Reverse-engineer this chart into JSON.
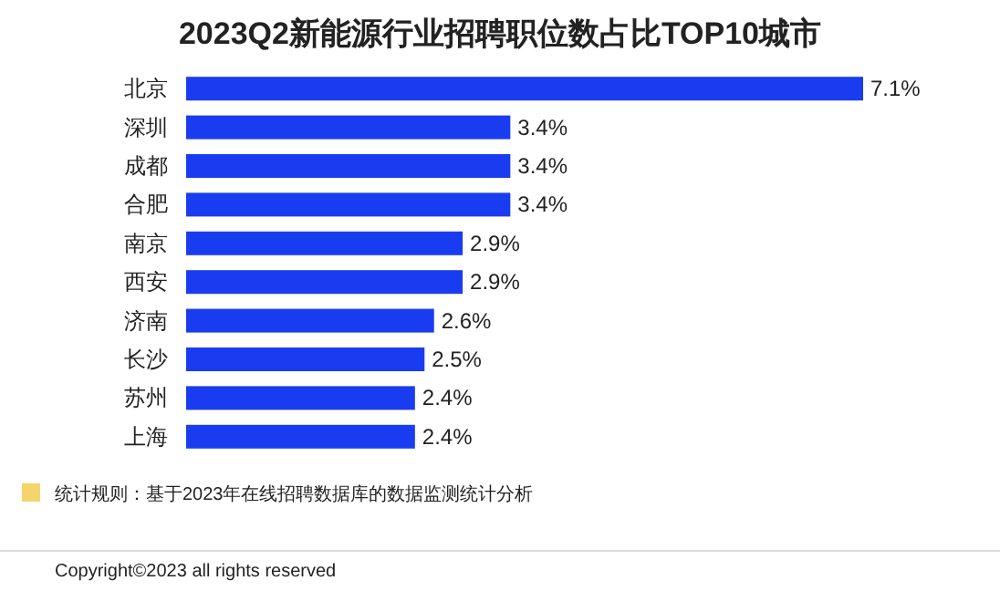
{
  "chart_data": {
    "type": "bar",
    "orientation": "horizontal",
    "title": "2023Q2新能源行业招聘职位数占比TOP10城市",
    "categories": [
      "北京",
      "深圳",
      "成都",
      "合肥",
      "南京",
      "西安",
      "济南",
      "长沙",
      "苏州",
      "上海"
    ],
    "values": [
      7.1,
      3.4,
      3.4,
      3.4,
      2.9,
      2.9,
      2.6,
      2.5,
      2.4,
      2.4
    ],
    "value_labels": [
      "7.1%",
      "3.4%",
      "3.4%",
      "3.4%",
      "2.9%",
      "2.9%",
      "2.6%",
      "2.5%",
      "2.4%",
      "2.4%"
    ],
    "color": "#1a3cf0",
    "annotations": [
      "统计规则：基于2023年在线招聘数据库的数据监测统计分析",
      "Copyright©2023 all rights reserved"
    ]
  }
}
